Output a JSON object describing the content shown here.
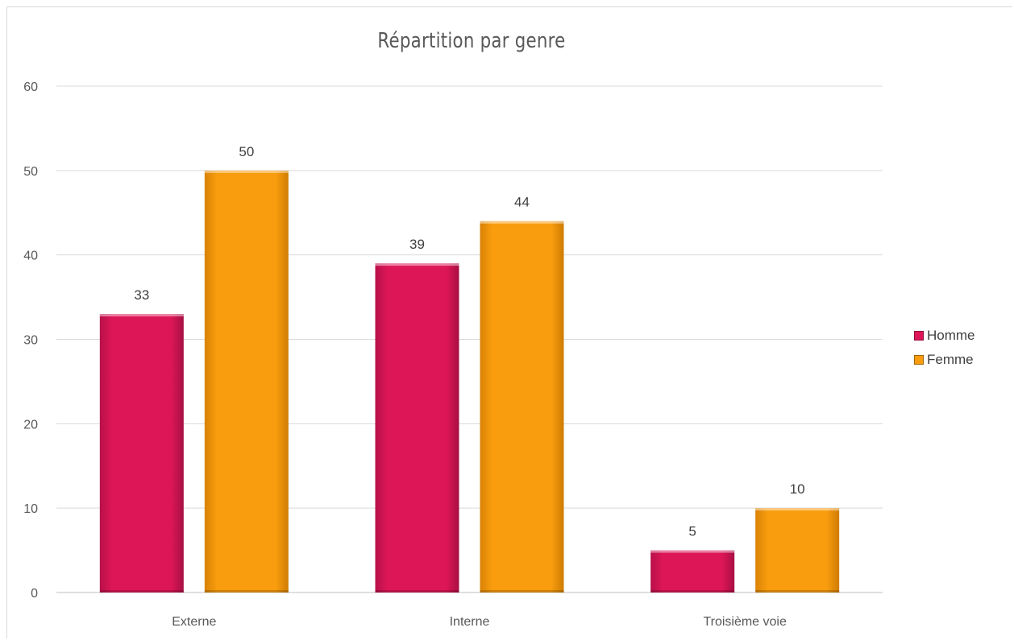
{
  "chart_data": {
    "type": "bar",
    "title": "Répartition par genre",
    "categories": [
      "Externe",
      "Interne",
      "Troisième voie"
    ],
    "series": [
      {
        "name": "Homme",
        "values": [
          33,
          39,
          5
        ],
        "color": "#DD1657"
      },
      {
        "name": "Femme",
        "values": [
          50,
          44,
          10
        ],
        "color": "#F99D0E"
      }
    ],
    "ylim": [
      0,
      60
    ],
    "yticks": [
      0,
      10,
      20,
      30,
      40,
      50,
      60
    ],
    "grid": true,
    "legend_position": "right",
    "data_labels": true
  }
}
